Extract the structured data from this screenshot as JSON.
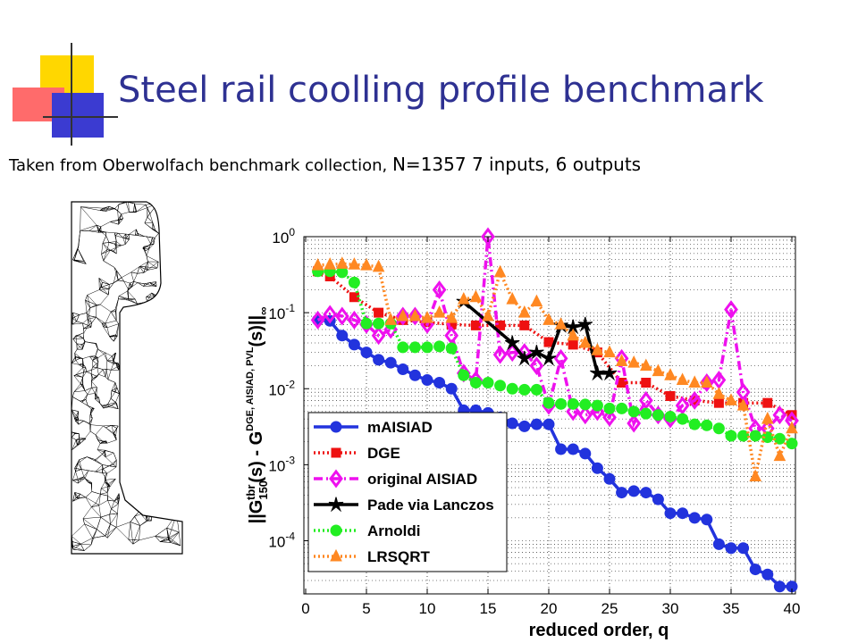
{
  "slide": {
    "title": "Steel rail coolling profile benchmark",
    "subtitle_part1": "Taken from Oberwolfach benchmark collection, ",
    "subtitle_part2": "N=1357 7 inputs, 6 outputs"
  },
  "colors": {
    "title": "#2e3192",
    "deco_yellow": "#ffd700",
    "deco_red": "#ff6b6b",
    "deco_blue": "#3b3bd1"
  },
  "chart_data": {
    "type": "line",
    "xlabel": "reduced order, q",
    "ylabel": "||G₁₅₀ᵗᵇʳ(s) - G DGE, AISIAD, PVL(s)||∞",
    "xlim": [
      0,
      40
    ],
    "ylim": [
      2e-05,
      1
    ],
    "yscale": "log",
    "grid": true,
    "legend": "bottom-left",
    "xticks": [
      0,
      5,
      10,
      15,
      20,
      25,
      30,
      35,
      40
    ],
    "yticks": [
      {
        "value": 1,
        "base": "10",
        "exp": "0"
      },
      {
        "value": 0.1,
        "base": "10",
        "exp": "-1"
      },
      {
        "value": 0.01,
        "base": "10",
        "exp": "-2"
      },
      {
        "value": 0.001,
        "base": "10",
        "exp": "-3"
      },
      {
        "value": 0.0001,
        "base": "10",
        "exp": "-4"
      }
    ],
    "series": [
      {
        "name": "mAISIAD",
        "color": "#2233dd",
        "dash": "",
        "marker": "circle",
        "x": [
          1,
          2,
          3,
          4,
          5,
          6,
          7,
          8,
          9,
          10,
          11,
          12,
          13,
          14,
          15,
          16,
          17,
          18,
          19,
          20,
          21,
          22,
          23,
          24,
          25,
          26,
          27,
          28,
          29,
          30,
          31,
          32,
          33,
          34,
          35,
          36,
          37,
          38,
          39,
          40
        ],
        "y": [
          0.08,
          0.078,
          0.05,
          0.038,
          0.03,
          0.024,
          0.022,
          0.018,
          0.015,
          0.013,
          0.012,
          0.01,
          0.0052,
          0.0052,
          0.0048,
          0.0042,
          0.0035,
          0.0032,
          0.0034,
          0.0034,
          0.0016,
          0.0016,
          0.0014,
          0.0009,
          0.00065,
          0.00043,
          0.00045,
          0.00043,
          0.00035,
          0.00023,
          0.00023,
          0.0002,
          0.00019,
          9e-05,
          8e-05,
          8e-05,
          4.2e-05,
          3.6e-05,
          2.5e-05,
          2.5e-05
        ]
      },
      {
        "name": "DGE",
        "color": "#ee1111",
        "dash": "2,3",
        "marker": "square",
        "x": [
          1,
          2,
          4,
          6,
          8,
          10,
          12,
          14,
          16,
          18,
          20,
          22,
          24,
          26,
          28,
          30,
          32,
          34,
          36,
          38,
          40
        ],
        "y": [
          0.35,
          0.3,
          0.16,
          0.1,
          0.08,
          0.075,
          0.07,
          0.068,
          0.068,
          0.068,
          0.041,
          0.038,
          0.03,
          0.012,
          0.012,
          0.008,
          0.007,
          0.0065,
          0.0065,
          0.0065,
          0.0045
        ]
      },
      {
        "name": "original AISIAD",
        "color": "#ee11ee",
        "dash": "10,4,2,4",
        "marker": "diamond",
        "x": [
          1,
          2,
          3,
          4,
          5,
          6,
          7,
          8,
          9,
          10,
          11,
          12,
          13,
          14,
          15,
          16,
          17,
          18,
          19,
          20,
          21,
          22,
          23,
          24,
          25,
          26,
          27,
          28,
          29,
          30,
          31,
          32,
          33,
          34,
          35,
          36,
          37,
          38,
          39,
          40
        ],
        "y": [
          0.08,
          0.095,
          0.09,
          0.08,
          0.07,
          0.05,
          0.06,
          0.09,
          0.09,
          0.07,
          0.2,
          0.05,
          0.016,
          0.013,
          1.0,
          0.028,
          0.03,
          0.03,
          0.02,
          0.006,
          0.025,
          0.005,
          0.0045,
          0.005,
          0.0042,
          0.025,
          0.0035,
          0.007,
          0.0045,
          0.004,
          0.006,
          0.007,
          0.012,
          0.013,
          0.11,
          0.009,
          0.003,
          0.003,
          0.0045,
          0.0038
        ]
      },
      {
        "name": "Pade via Lanczos",
        "color": "#000000",
        "dash": "",
        "marker": "star",
        "x": [
          13,
          17,
          18,
          19,
          20,
          21,
          22,
          23,
          24,
          25
        ],
        "y": [
          0.14,
          0.04,
          0.025,
          0.03,
          0.025,
          0.068,
          0.065,
          0.07,
          0.016,
          0.016
        ]
      },
      {
        "name": "Arnoldi",
        "color": "#22ee22",
        "dash": "2,3",
        "marker": "circle",
        "x": [
          1,
          2,
          3,
          4,
          5,
          6,
          7,
          8,
          9,
          10,
          11,
          12,
          13,
          14,
          15,
          16,
          17,
          18,
          19,
          20,
          21,
          22,
          23,
          24,
          25,
          26,
          27,
          28,
          29,
          30,
          31,
          32,
          33,
          34,
          35,
          36,
          37,
          38,
          39,
          40
        ],
        "y": [
          0.35,
          0.35,
          0.34,
          0.25,
          0.072,
          0.072,
          0.072,
          0.035,
          0.035,
          0.035,
          0.036,
          0.034,
          0.015,
          0.012,
          0.012,
          0.011,
          0.01,
          0.0097,
          0.0097,
          0.0065,
          0.0063,
          0.0063,
          0.0062,
          0.006,
          0.0055,
          0.0055,
          0.005,
          0.0047,
          0.0045,
          0.0043,
          0.004,
          0.0034,
          0.0033,
          0.003,
          0.0024,
          0.0024,
          0.0024,
          0.0023,
          0.0022,
          0.0019
        ]
      },
      {
        "name": "LRSQRT",
        "color": "#ff8822",
        "dash": "2,3",
        "marker": "triangle",
        "x": [
          1,
          2,
          3,
          4,
          5,
          6,
          7,
          8,
          9,
          10,
          11,
          12,
          13,
          14,
          15,
          16,
          17,
          18,
          19,
          20,
          21,
          22,
          23,
          24,
          25,
          26,
          27,
          28,
          29,
          30,
          31,
          32,
          33,
          34,
          35,
          36,
          37,
          38,
          39,
          40
        ],
        "y": [
          0.42,
          0.43,
          0.44,
          0.43,
          0.42,
          0.4,
          0.08,
          0.09,
          0.09,
          0.085,
          0.1,
          0.085,
          0.15,
          0.16,
          0.09,
          0.34,
          0.15,
          0.1,
          0.14,
          0.08,
          0.07,
          0.05,
          0.04,
          0.032,
          0.03,
          0.023,
          0.022,
          0.02,
          0.017,
          0.015,
          0.013,
          0.012,
          0.012,
          0.0085,
          0.007,
          0.006,
          0.0007,
          0.004,
          0.0013,
          0.003
        ]
      }
    ]
  }
}
